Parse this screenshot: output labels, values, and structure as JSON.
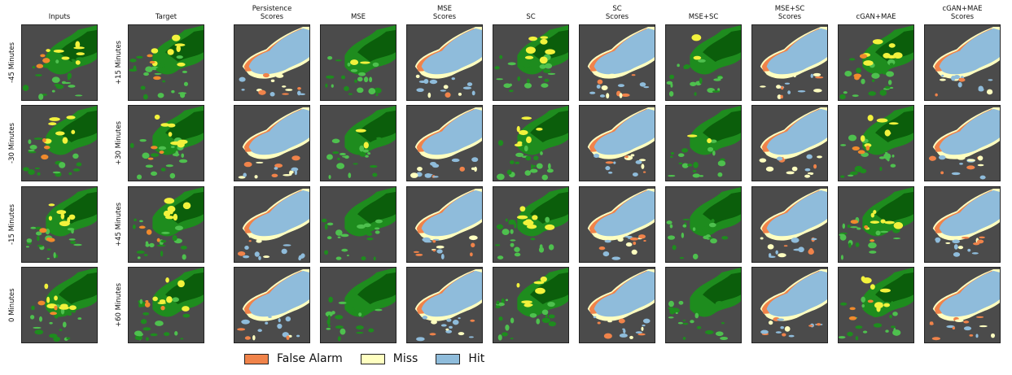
{
  "figure": {
    "columns": [
      {
        "title": "Inputs",
        "kind": "input"
      },
      {
        "title": "Target",
        "kind": "field"
      },
      {
        "title": "Persistence\nScores",
        "kind": "score"
      },
      {
        "title": "MSE",
        "kind": "field"
      },
      {
        "title": "MSE\nScores",
        "kind": "score"
      },
      {
        "title": "SC",
        "kind": "field"
      },
      {
        "title": "SC\nScores",
        "kind": "score"
      },
      {
        "title": "MSE+SC",
        "kind": "field"
      },
      {
        "title": "MSE+SC\nScores",
        "kind": "score"
      },
      {
        "title": "cGAN+MAE",
        "kind": "field"
      },
      {
        "title": "cGAN+MAE\nScores",
        "kind": "score"
      }
    ],
    "input_row_labels": [
      "-45 Minutes",
      "-30 Minutes",
      "-15 Minutes",
      "0 Minutes"
    ],
    "target_row_labels": [
      "+15 Minutes",
      "+30 Minutes",
      "+45 Minutes",
      "+60 Minutes"
    ]
  },
  "legend": [
    {
      "label": "False Alarm",
      "color": "#f0834a"
    },
    {
      "label": "Miss",
      "color": "#ffffc0"
    },
    {
      "label": "Hit",
      "color": "#8fbcdb"
    }
  ],
  "colors": {
    "background": "#4b4b4b",
    "green_dark": "#0b5e0b",
    "green_mid": "#1e8c1e",
    "green_light": "#4ec04e",
    "yellow": "#f2f23c",
    "orange": "#f08a2c"
  }
}
